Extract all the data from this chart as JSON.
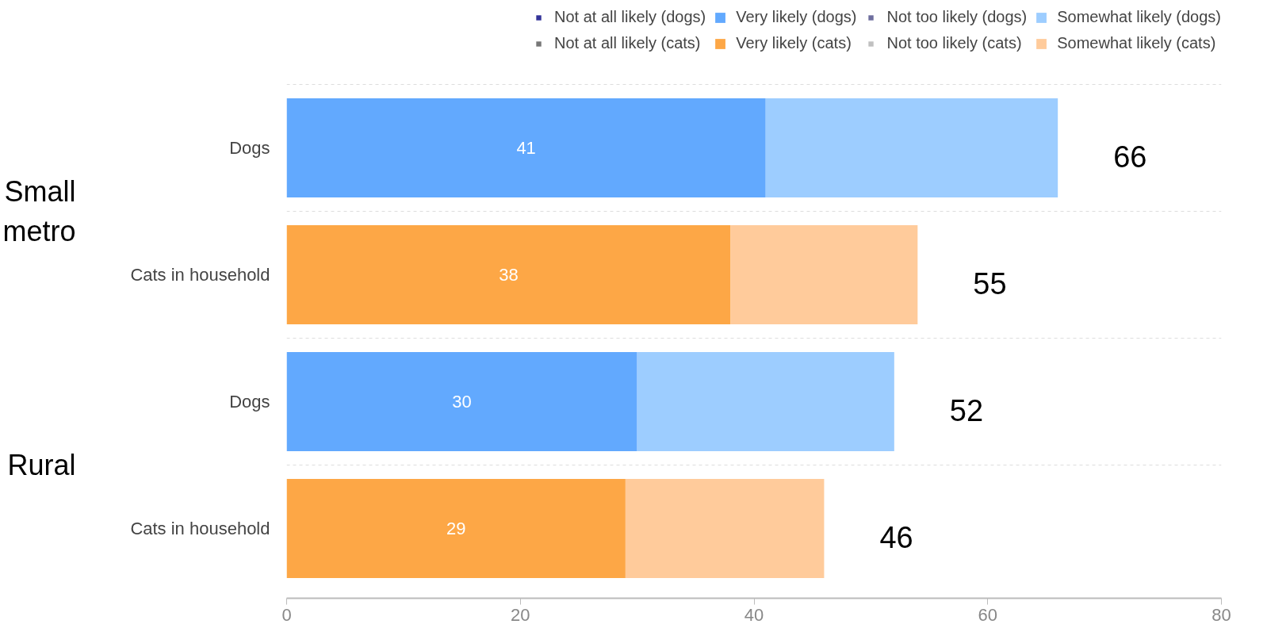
{
  "chart_data": {
    "type": "bar",
    "orientation": "horizontal",
    "stacked": true,
    "categories": [
      "Dogs",
      "Cats in household",
      "Dogs",
      "Cats in household"
    ],
    "series": [
      {
        "name": "Not at all likely (dogs)",
        "color": "#333399",
        "values": [
          null,
          null,
          null,
          null
        ]
      },
      {
        "name": "Not at all likely (cats)",
        "color": "#777777",
        "values": [
          null,
          null,
          null,
          null
        ]
      },
      {
        "name": "Very likely (dogs)",
        "color": "#62a9fe",
        "values": [
          41,
          null,
          30,
          null
        ],
        "value_labels": [
          "41",
          null,
          "30",
          null
        ]
      },
      {
        "name": "Very likely (cats)",
        "color": "#fda746",
        "values": [
          null,
          38,
          null,
          29
        ],
        "value_labels": [
          null,
          "38",
          null,
          "29"
        ]
      },
      {
        "name": "Not too likely (dogs)",
        "color": "#6e6e9e",
        "values": [
          null,
          null,
          null,
          null
        ]
      },
      {
        "name": "Not too likely (cats)",
        "color": "#c0c0c0",
        "values": [
          null,
          null,
          null,
          null
        ]
      },
      {
        "name": "Somewhat likely (dogs)",
        "color": "#9dcdff",
        "values": [
          25,
          null,
          22,
          null
        ]
      },
      {
        "name": "Somewhat likely (cats)",
        "color": "#ffcb9b",
        "values": [
          null,
          16,
          null,
          17
        ]
      }
    ],
    "totals": [
      "66",
      "55",
      "52",
      "46"
    ],
    "annotations": [
      "Small metro",
      "Rural"
    ],
    "xlim": [
      0,
      80
    ],
    "xticks": [
      0,
      20,
      40,
      60,
      80
    ],
    "grid": "y",
    "legend": "top"
  }
}
